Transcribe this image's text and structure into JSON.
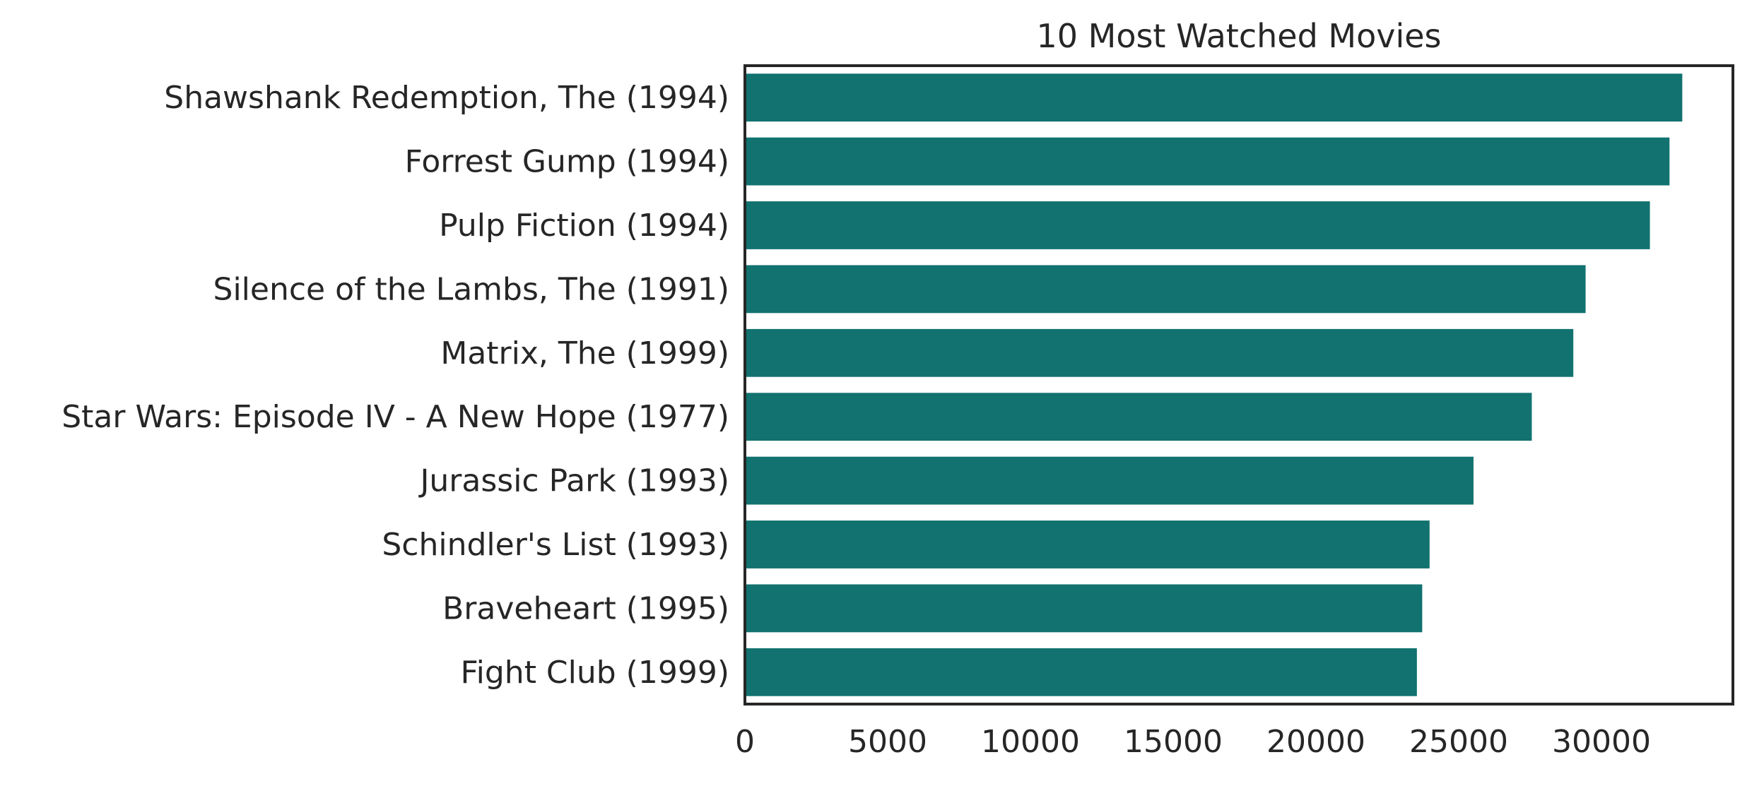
{
  "chart_data": {
    "type": "bar",
    "orientation": "horizontal",
    "title": "10 Most Watched Movies",
    "xlabel": "",
    "ylabel": "",
    "categories": [
      "Shawshank Redemption, The (1994)",
      "Forrest Gump (1994)",
      "Pulp Fiction (1994)",
      "Silence of the Lambs, The (1991)",
      "Matrix, The (1999)",
      "Star Wars: Episode IV - A New Hope (1977)",
      "Jurassic Park (1993)",
      "Schindler's List (1993)",
      "Braveheart (1995)",
      "Fight Club (1999)"
    ],
    "values": [
      32831,
      32383,
      31697,
      29444,
      29014,
      27560,
      25518,
      23980,
      23722,
      23536
    ],
    "xlim": [
      0,
      34500
    ],
    "xticks": [
      0,
      5000,
      10000,
      15000,
      20000,
      25000,
      30000
    ],
    "xtick_labels": [
      "0",
      "5000",
      "10000",
      "15000",
      "20000",
      "25000",
      "30000"
    ],
    "grid": false,
    "bar_color": "#11726f",
    "axis_color": "#262626"
  }
}
